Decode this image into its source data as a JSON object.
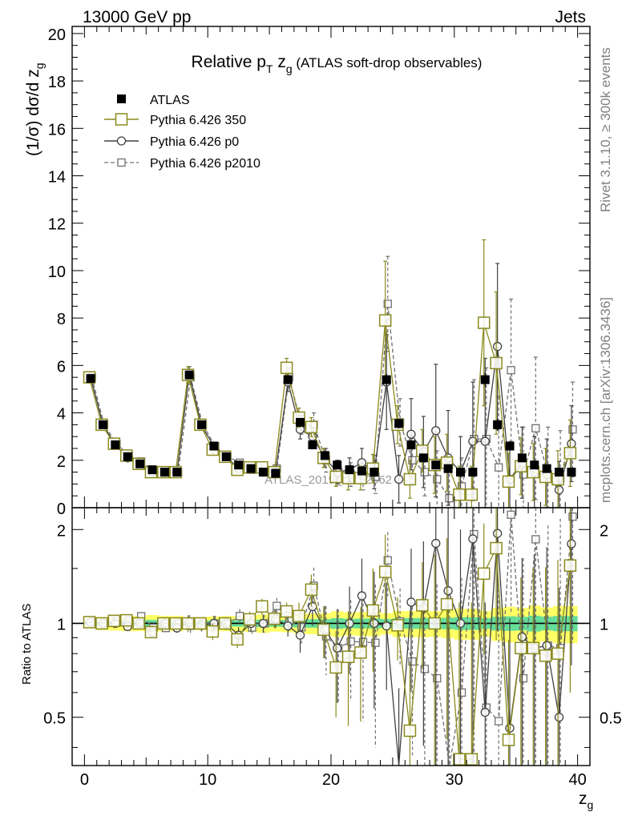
{
  "header": {
    "left": "13000 GeV pp",
    "right": "Jets"
  },
  "side_labels": {
    "rivet": "Rivet 3.1.10, ≥ 300k events",
    "mcplots": "mcplots.cern.ch [arXiv:1306.3436]"
  },
  "watermark": "ATLAS_2019_I1772062",
  "colors": {
    "atlas": "#000000",
    "p350": "#8a8a1e",
    "p0": "#404040",
    "p2010": "#707070",
    "band_inner": "#66dd99",
    "band_outer": "#ffff66"
  },
  "chart_data": [
    {
      "type": "line",
      "title": "Relative pT zg (ATLAS soft-drop observables)",
      "title_parts": {
        "pre": "Relative p",
        "sub_t": "T",
        "mid": " z",
        "sub_g": "g",
        "post": " (ATLAS soft-drop observables)"
      },
      "ylabel": "(1/σ) dσ/d z",
      "ylabel_sub": "g",
      "xlim": [
        -1,
        41
      ],
      "ylim": [
        0,
        20.3
      ],
      "yticks": [
        0,
        2,
        4,
        6,
        8,
        10,
        12,
        14,
        16,
        18,
        20
      ],
      "yticklabels": [
        "0",
        "2",
        "4",
        "6",
        "8",
        "10",
        "12",
        "14",
        "16",
        "18",
        "20"
      ],
      "x": [
        0.5,
        1.5,
        2.5,
        3.5,
        4.5,
        5.5,
        6.5,
        7.5,
        8.5,
        9.5,
        10.5,
        11.5,
        12.5,
        13.5,
        14.5,
        15.5,
        16.5,
        17.5,
        18.5,
        19.5,
        20.5,
        21.5,
        22.5,
        23.5,
        24.5,
        25.5,
        26.5,
        27.5,
        28.5,
        29.5,
        30.5,
        31.5,
        32.5,
        33.5,
        34.5,
        35.5,
        36.5,
        37.5,
        38.5,
        39.5
      ],
      "series": [
        {
          "name": "ATLAS",
          "values": [
            5.45,
            3.5,
            2.65,
            2.15,
            1.85,
            1.6,
            1.5,
            1.5,
            5.6,
            3.5,
            2.6,
            2.15,
            1.8,
            1.65,
            1.5,
            1.45,
            5.4,
            3.6,
            2.65,
            2.2,
            1.8,
            1.6,
            1.55,
            1.5,
            5.4,
            3.55,
            2.65,
            2.1,
            1.8,
            1.65,
            1.5,
            1.5,
            5.4,
            3.5,
            2.6,
            2.1,
            1.8,
            1.65,
            1.5,
            1.5
          ],
          "errors": [
            0.1,
            0.1,
            0.08,
            0.07,
            0.06,
            0.06,
            0.05,
            0.05,
            0.15,
            0.1,
            0.08,
            0.07,
            0.06,
            0.06,
            0.06,
            0.05,
            0.2,
            0.15,
            0.12,
            0.1,
            0.1,
            0.08,
            0.08,
            0.08,
            0.25,
            0.2,
            0.15,
            0.12,
            0.1,
            0.1,
            0.1,
            0.1,
            0.3,
            0.25,
            0.2,
            0.15,
            0.15,
            0.12,
            0.12,
            0.12
          ]
        },
        {
          "name": "Pythia 6.426 350",
          "values": [
            5.5,
            3.5,
            2.7,
            2.2,
            1.85,
            1.5,
            1.5,
            1.5,
            5.6,
            3.5,
            2.45,
            2.15,
            1.6,
            1.7,
            1.7,
            1.5,
            5.9,
            3.8,
            3.4,
            2.1,
            1.3,
            1.25,
            1.25,
            1.65,
            7.9,
            3.5,
            1.2,
            2.4,
            1.8,
            1.9,
            0.55,
            0.55,
            7.8,
            6.1,
            1.1,
            1.75,
            1.5,
            1.3,
            1.2,
            2.3
          ],
          "errors": [
            0.05,
            0.05,
            0.05,
            0.05,
            0.05,
            0.05,
            0.05,
            0.05,
            0.35,
            0.15,
            0.15,
            0.1,
            0.1,
            0.1,
            0.1,
            0.1,
            0.4,
            0.4,
            0.4,
            0.4,
            0.4,
            0.5,
            0.5,
            0.6,
            2.5,
            0.8,
            0.8,
            0.9,
            1.2,
            1.2,
            1.2,
            1.2,
            3.5,
            3.0,
            1.2,
            1.2,
            1.2,
            1.2,
            1.2,
            1.4
          ]
        },
        {
          "name": "Pythia 6.426 p0",
          "values": [
            5.5,
            3.5,
            2.65,
            2.1,
            1.85,
            1.5,
            1.5,
            1.45,
            5.65,
            3.45,
            2.6,
            2.15,
            1.65,
            1.65,
            1.5,
            1.5,
            5.3,
            3.3,
            3.0,
            2.1,
            1.5,
            1.6,
            1.9,
            1.5,
            5.3,
            1.2,
            3.1,
            2.35,
            3.25,
            2.1,
            1.5,
            2.8,
            2.8,
            6.8,
            1.2,
            1.9,
            1.5,
            1.4,
            0.75,
            2.7
          ],
          "errors": [
            0.05,
            0.05,
            0.05,
            0.05,
            0.05,
            0.05,
            0.05,
            0.05,
            0.3,
            0.15,
            0.15,
            0.1,
            0.1,
            0.1,
            0.1,
            0.1,
            0.4,
            0.4,
            0.4,
            0.4,
            0.5,
            0.5,
            0.6,
            0.7,
            2.0,
            1.0,
            1.5,
            1.5,
            2.8,
            2.0,
            1.5,
            2.5,
            3.5,
            3.5,
            1.5,
            1.5,
            1.5,
            1.5,
            1.2,
            1.6
          ]
        },
        {
          "name": "Pythia 6.426 p2010",
          "values": [
            5.5,
            3.5,
            2.7,
            2.2,
            1.95,
            1.55,
            1.45,
            1.5,
            5.5,
            3.5,
            2.6,
            2.15,
            1.9,
            1.6,
            1.5,
            1.65,
            5.5,
            3.5,
            3.5,
            2.0,
            1.5,
            1.4,
            1.35,
            1.3,
            8.6,
            3.6,
            2.0,
            1.5,
            1.2,
            0.4,
            0.9,
            2.9,
            2.9,
            1.7,
            5.8,
            1.4,
            3.35,
            1.4,
            1.25,
            3.3
          ],
          "errors": [
            0.05,
            0.05,
            0.05,
            0.05,
            0.05,
            0.05,
            0.05,
            0.05,
            0.3,
            0.15,
            0.15,
            0.1,
            0.1,
            0.1,
            0.1,
            0.1,
            0.4,
            0.4,
            0.5,
            0.5,
            0.5,
            0.5,
            0.6,
            0.7,
            2.0,
            1.0,
            1.0,
            1.0,
            1.2,
            1.5,
            1.2,
            2.5,
            3.0,
            3.0,
            3.0,
            2.0,
            3.0,
            2.0,
            2.0,
            2.0
          ]
        }
      ]
    },
    {
      "type": "line",
      "ylabel": "Ratio to ATLAS",
      "xlabel": "z",
      "xlabel_sub": "g",
      "xlim": [
        -1,
        41
      ],
      "ylim": [
        0.35,
        2.35
      ],
      "yticks": [
        0.5,
        1,
        2
      ],
      "yticklabels": [
        "0.5",
        "1",
        "2"
      ],
      "xticks": [
        0,
        10,
        20,
        30,
        40
      ],
      "xticklabels": [
        "0",
        "10",
        "20",
        "30",
        "40"
      ],
      "reference": 1
    }
  ]
}
